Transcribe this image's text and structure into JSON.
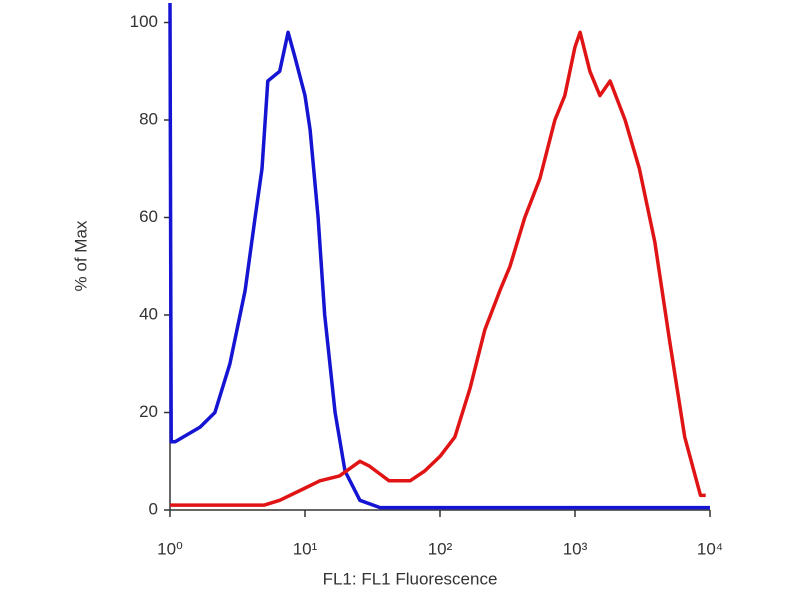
{
  "chart_data": {
    "type": "line",
    "xscale": "log",
    "xlabel": "FL1: FL1 Fluorescence",
    "ylabel": "% of Max",
    "xlim": [
      1,
      10000
    ],
    "ylim": [
      0,
      104
    ],
    "xticks": [
      {
        "value": 1,
        "label": "10⁰"
      },
      {
        "value": 10,
        "label": "10¹"
      },
      {
        "value": 100,
        "label": "10²"
      },
      {
        "value": 1000,
        "label": "10³"
      },
      {
        "value": 10000,
        "label": "10⁴"
      }
    ],
    "yticks": [
      0,
      20,
      40,
      60,
      80,
      100
    ],
    "series": [
      {
        "color": "#1414d2",
        "x": [
          1,
          1.02,
          1.09,
          1.67,
          2.15,
          2.78,
          3.6,
          4.27,
          4.8,
          5.3,
          6.5,
          7.5,
          8.4,
          10,
          10.9,
          12.5,
          14,
          16.7,
          19.8,
          25.5,
          36,
          100,
          1000,
          10000
        ],
        "values": [
          104,
          14,
          14,
          17,
          20,
          30,
          45,
          60,
          70,
          88,
          90,
          98,
          93,
          85,
          78,
          60,
          40,
          20,
          8,
          2,
          0.5,
          0.5,
          0.5,
          0.5
        ]
      },
      {
        "color": "#e01414",
        "x": [
          1,
          2,
          5,
          6.5,
          9.2,
          12.9,
          18,
          25.5,
          30,
          42,
          60,
          77,
          100,
          129,
          167,
          215,
          278,
          330,
          425,
          550,
          710,
          840,
          1000,
          1090,
          1290,
          1530,
          1820,
          2350,
          3000,
          3900,
          5000,
          6500,
          8500,
          9300
        ],
        "values": [
          1,
          1,
          1,
          2,
          4,
          6,
          7,
          10,
          9,
          6,
          6,
          8,
          11,
          15,
          25,
          37,
          45,
          50,
          60,
          68,
          80,
          85,
          95,
          98,
          90,
          85,
          88,
          80,
          70,
          55,
          35,
          15,
          3,
          3
        ]
      }
    ]
  }
}
